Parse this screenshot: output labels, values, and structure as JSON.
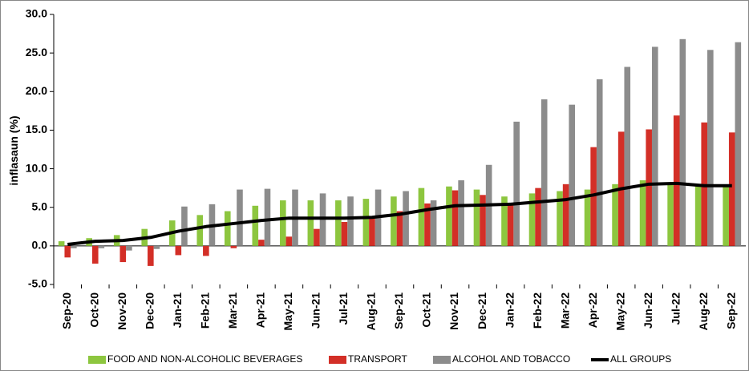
{
  "chart_data": {
    "type": "bar_line",
    "ylabel": "inflasaun (%)",
    "categories": [
      "Sep-20",
      "Oct-20",
      "Nov-20",
      "Dec-20",
      "Jan-21",
      "Feb-21",
      "Mar-21",
      "Apr-21",
      "May-21",
      "Jun-21",
      "Jul-21",
      "Aug-21",
      "Sep-21",
      "Oct-21",
      "Nov-21",
      "Dec-21",
      "Jan-22",
      "Feb-22",
      "Mar-22",
      "Apr-22",
      "May-22",
      "Jun-22",
      "Jul-22",
      "Aug-22",
      "Sep-22"
    ],
    "series": [
      {
        "name": "FOOD AND NON-ALCOHOLIC BEVERAGES",
        "color": "#8dc63f",
        "kind": "bar",
        "values": [
          0.6,
          1.0,
          1.4,
          2.2,
          3.3,
          4.0,
          4.5,
          5.2,
          5.9,
          5.9,
          5.9,
          6.1,
          6.4,
          7.5,
          7.7,
          7.3,
          6.4,
          6.8,
          7.1,
          7.3,
          8.0,
          8.5,
          8.2,
          7.8,
          7.8
        ]
      },
      {
        "name": "TRANSPORT",
        "color": "#d32f27",
        "kind": "bar",
        "values": [
          -1.5,
          -2.3,
          -2.1,
          -2.6,
          -1.2,
          -1.3,
          -0.3,
          0.8,
          1.2,
          2.2,
          3.1,
          3.8,
          4.5,
          5.5,
          7.2,
          6.6,
          5.3,
          7.5,
          8.0,
          12.8,
          14.8,
          15.1,
          16.9,
          16.0,
          14.7
        ]
      },
      {
        "name": "ALCOHOL AND TOBACCO",
        "color": "#8c8c8c",
        "kind": "bar",
        "values": [
          -0.3,
          -0.3,
          -0.6,
          -0.4,
          5.1,
          5.4,
          7.3,
          7.4,
          7.3,
          6.8,
          6.4,
          7.3,
          7.1,
          5.9,
          8.5,
          10.5,
          16.1,
          19.0,
          18.3,
          21.6,
          23.2,
          25.8,
          26.8,
          25.4,
          26.4
        ]
      },
      {
        "name": "ALL GROUPS",
        "color": "#000000",
        "kind": "line",
        "values": [
          0.2,
          0.6,
          0.7,
          1.1,
          1.9,
          2.5,
          2.9,
          3.3,
          3.6,
          3.6,
          3.6,
          3.7,
          4.1,
          4.7,
          5.2,
          5.3,
          5.4,
          5.7,
          6.0,
          6.6,
          7.4,
          8.0,
          8.1,
          7.8,
          7.8
        ]
      }
    ],
    "ylim": [
      -5,
      30
    ],
    "yticks": [
      {
        "value": -5,
        "label": "-5.0"
      },
      {
        "value": 0,
        "label": "0.0"
      },
      {
        "value": 5,
        "label": "5.0"
      },
      {
        "value": 10,
        "label": "10.0"
      },
      {
        "value": 15,
        "label": "15.0"
      },
      {
        "value": 20,
        "label": "20.0"
      },
      {
        "value": 25,
        "label": "25.0"
      },
      {
        "value": 30,
        "label": "30.0"
      }
    ],
    "grid": false,
    "legend": "bottom"
  }
}
